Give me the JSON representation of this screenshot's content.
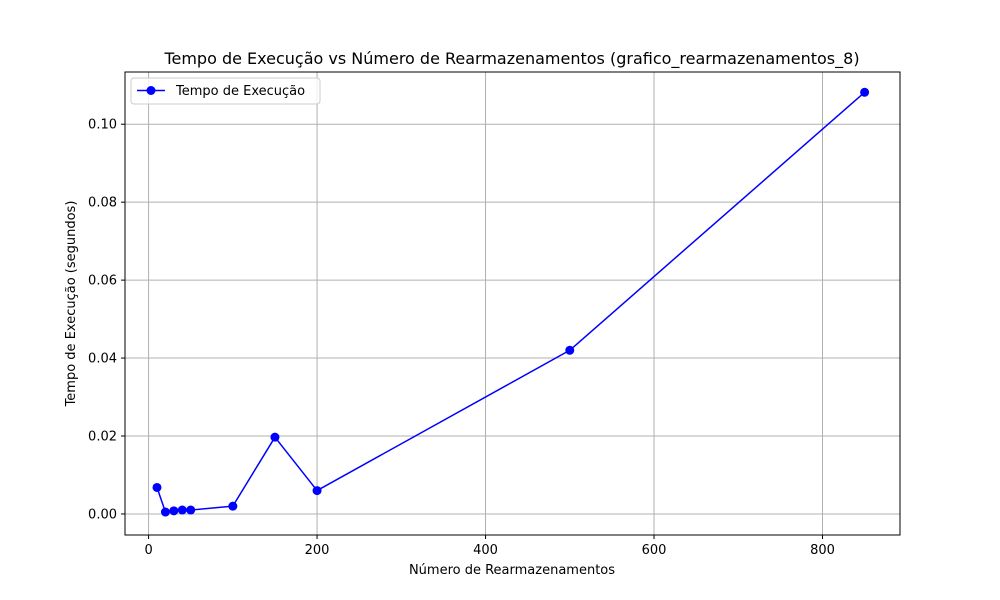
{
  "chart_data": {
    "type": "line",
    "title": "Tempo de Execução vs Número de Rearmazenamentos (grafico_rearmazenamentos_8)",
    "xlabel": "Número de Rearmazenamentos",
    "ylabel": "Tempo de Execução (segundos)",
    "xlim": [
      -28,
      892
    ],
    "ylim": [
      -0.0054,
      0.1134
    ],
    "xticks": [
      0,
      200,
      400,
      600,
      800
    ],
    "xtick_labels": [
      "0",
      "200",
      "400",
      "600",
      "800"
    ],
    "yticks": [
      0.0,
      0.02,
      0.04,
      0.06,
      0.08,
      0.1
    ],
    "ytick_labels": [
      "0.00",
      "0.02",
      "0.04",
      "0.06",
      "0.08",
      "0.10"
    ],
    "grid": true,
    "legend_position": "top-left",
    "series": [
      {
        "name": "Tempo de Execução",
        "color": "#0000ff",
        "marker": "circle",
        "x": [
          10,
          20,
          30,
          40,
          50,
          100,
          150,
          200,
          500,
          850
        ],
        "y": [
          0.0068,
          0.0005,
          0.0008,
          0.001,
          0.001,
          0.002,
          0.0197,
          0.006,
          0.042,
          0.1082
        ]
      }
    ]
  }
}
